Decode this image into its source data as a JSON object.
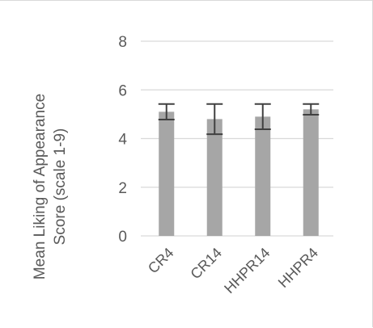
{
  "chart_data": {
    "type": "bar",
    "title": "",
    "xlabel": "",
    "ylabel_lines": [
      "Mean Liking of Appearance",
      "Score (scale 1-9)"
    ],
    "categories": [
      "CR4",
      "CR14",
      "HHPR14",
      "HHPR4"
    ],
    "values": [
      5.1,
      4.8,
      4.9,
      5.2
    ],
    "error": [
      0.32,
      0.62,
      0.52,
      0.22
    ],
    "ylim": [
      0,
      8
    ],
    "yticks": [
      0,
      2,
      4,
      6,
      8
    ],
    "grid": true,
    "legend": "none",
    "colors": {
      "bar": "#a6a6a6",
      "error_bar": "#404040",
      "grid": "#d9d9d9",
      "text": "#595959"
    }
  }
}
